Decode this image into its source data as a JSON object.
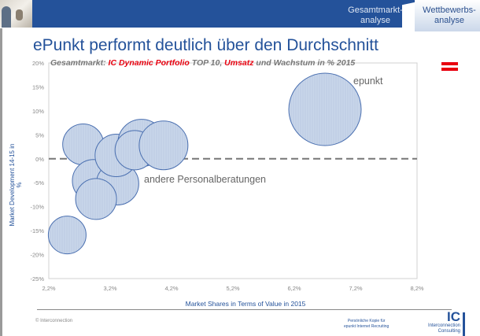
{
  "header": {
    "tabs": [
      {
        "label_line1": "Gesamtmarkt-",
        "label_line2": "analyse",
        "active": false
      },
      {
        "label_line1": "Wettbewerbs-",
        "label_line2": "analyse",
        "active": true
      }
    ]
  },
  "title": "ePunkt performt deutlich über den Durchschnitt",
  "subtitle": {
    "p1": "Gesamtmarkt: ",
    "p2": "IC Dynamic Portfolio",
    "p3": " TOP 10, ",
    "p4": "Umsatz",
    "p5": " und Wachstum in % 2015"
  },
  "flag_icon": "austria-flag-icon",
  "colors": {
    "brand": "#24529a",
    "bubble_fill": "#c8d6ea",
    "bubble_stroke": "#4a6fb0",
    "highlight": "#e8000f"
  },
  "chart_data": {
    "type": "bubble",
    "xlabel": "Market Shares in Terms of Value in 2015",
    "ylabel": "Market Development 14-15 in %",
    "xlim": [
      2.2,
      8.2
    ],
    "ylim": [
      -25,
      20
    ],
    "x_ticks": [
      "2,2%",
      "3,2%",
      "4,2%",
      "5,2%",
      "6,2%",
      "7,2%",
      "8,2%"
    ],
    "y_ticks": [
      "20%",
      "15%",
      "10%",
      "5%",
      "0%",
      "-5%",
      "-10%",
      "-15%",
      "-20%",
      "-25%"
    ],
    "reference_line_y": 0,
    "annotations": [
      "epunkt",
      "andere Personalberatungen"
    ],
    "bubbles": [
      {
        "x": 2.76,
        "y": 3.0,
        "size": 26
      },
      {
        "x": 2.93,
        "y": -4.6,
        "size": 27
      },
      {
        "x": 3.32,
        "y": -5.2,
        "size": 27
      },
      {
        "x": 2.97,
        "y": -8.4,
        "size": 26
      },
      {
        "x": 3.3,
        "y": 0.7,
        "size": 27
      },
      {
        "x": 3.71,
        "y": 3.3,
        "size": 30
      },
      {
        "x": 3.6,
        "y": 1.8,
        "size": 25
      },
      {
        "x": 4.07,
        "y": 2.8,
        "size": 31
      },
      {
        "x": 2.5,
        "y": -15.9,
        "size": 24
      },
      {
        "x": 6.7,
        "y": 10.3,
        "size": 46,
        "label": "epunkt"
      }
    ]
  },
  "footer": {
    "copyright": "© Interconnection",
    "note_line1": "Persönliche Kopie für",
    "note_line2": "epunkt Internet Recruiting",
    "logo_ic": "IC",
    "logo_line1": "Interconnection",
    "logo_line2": "Consulting"
  }
}
